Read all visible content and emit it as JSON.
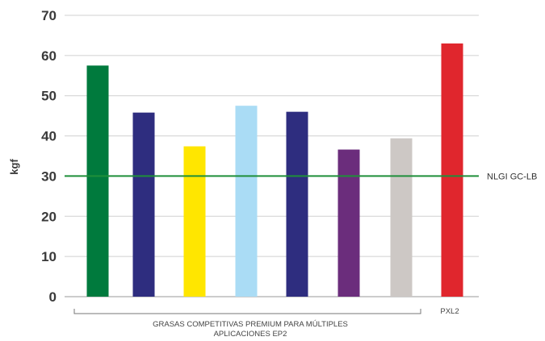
{
  "chart_data": {
    "type": "bar",
    "ylabel": "kgf",
    "ylim": [
      0,
      70
    ],
    "yticks": [
      0,
      10,
      20,
      30,
      40,
      50,
      60,
      70
    ],
    "grid": true,
    "bars": [
      {
        "value": 57.5,
        "color": "#007a3d"
      },
      {
        "value": 45.8,
        "color": "#2e2d7f"
      },
      {
        "value": 37.4,
        "color": "#ffe600"
      },
      {
        "value": 47.5,
        "color": "#aadcf5"
      },
      {
        "value": 46.0,
        "color": "#2e2d7f"
      },
      {
        "value": 36.6,
        "color": "#6b2d7c"
      },
      {
        "value": 39.4,
        "color": "#cdc8c5"
      },
      {
        "value": 63.0,
        "color": "#e0262d"
      }
    ],
    "reference_line": {
      "value": 30,
      "label": "NLGI GC-LB",
      "color": "#1f8f3a"
    },
    "group_labels": {
      "competitors_line1": "GRASAS COMPETITIVAS PREMIUM PARA MÚLTIPLES",
      "competitors_line2": "APLICACIONES EP2",
      "product": "PXL2"
    }
  }
}
